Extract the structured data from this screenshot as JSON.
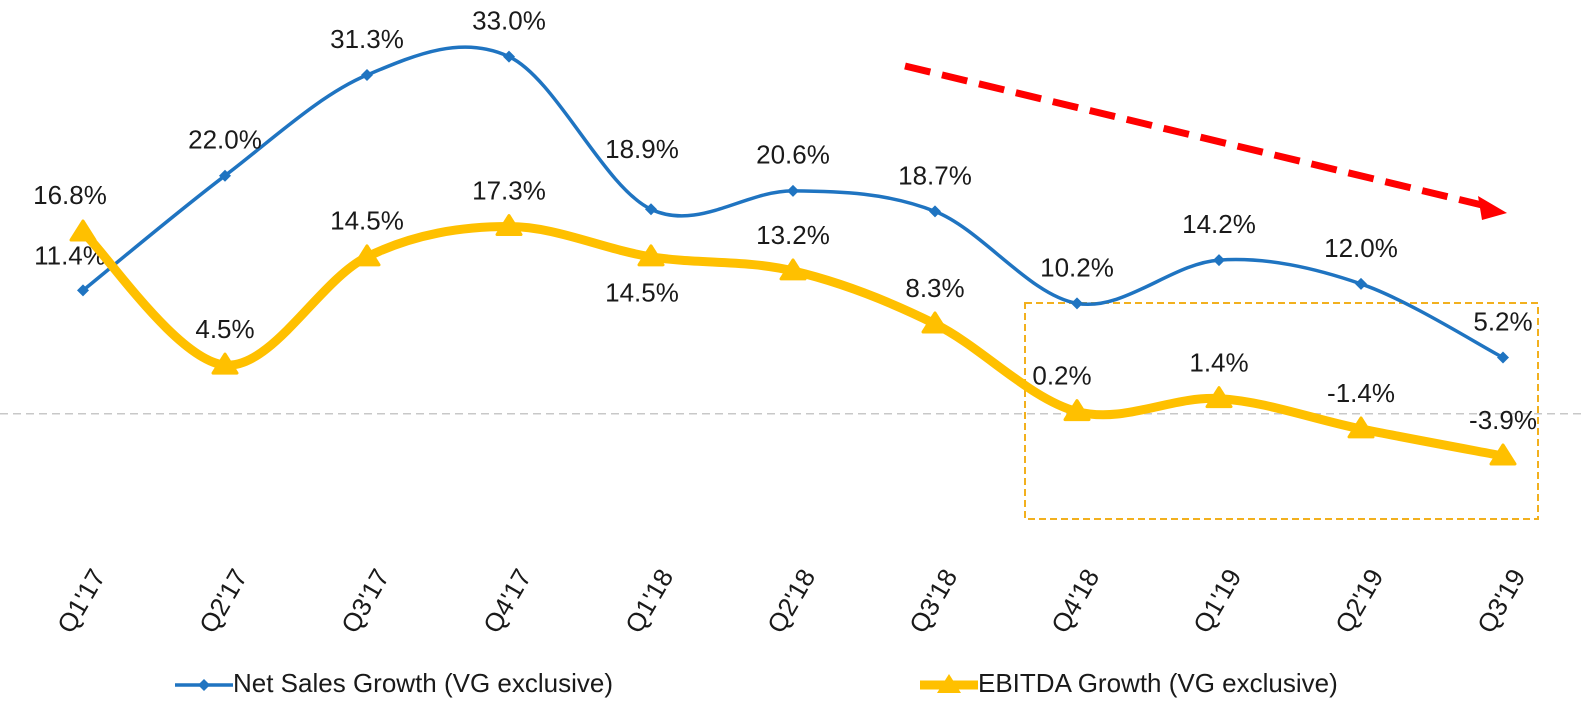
{
  "chart_data": {
    "type": "line",
    "categories": [
      "Q1'17",
      "Q2'17",
      "Q3'17",
      "Q4'17",
      "Q1'18",
      "Q2'18",
      "Q3'18",
      "Q4'18",
      "Q1'19",
      "Q2'19",
      "Q3'19"
    ],
    "series": [
      {
        "name": "Net Sales Growth (VG exclusive)",
        "color": "#1f74c1",
        "values": [
          11.4,
          22.0,
          31.3,
          33.0,
          18.9,
          20.6,
          18.7,
          10.2,
          14.2,
          12.0,
          5.2
        ],
        "value_labels": [
          "11.4%",
          "22.0%",
          "31.3%",
          "33.0%",
          "18.9%",
          "20.6%",
          "18.7%",
          "10.2%",
          "14.2%",
          "12.0%",
          "5.2%"
        ]
      },
      {
        "name": "EBITDA Growth (VG exclusive)",
        "color": "#ffc000",
        "values": [
          16.8,
          4.5,
          14.5,
          17.3,
          14.5,
          13.2,
          8.3,
          0.2,
          1.4,
          -1.4,
          -3.9
        ],
        "value_labels": [
          "16.8%",
          "4.5%",
          "14.5%",
          "17.3%",
          "14.5%",
          "13.2%",
          "8.3%",
          "0.2%",
          "1.4%",
          "-1.4%",
          "-3.9%"
        ]
      }
    ],
    "ylim": [
      -10,
      35
    ],
    "reference_line": 0,
    "legend": "bottom"
  }
}
